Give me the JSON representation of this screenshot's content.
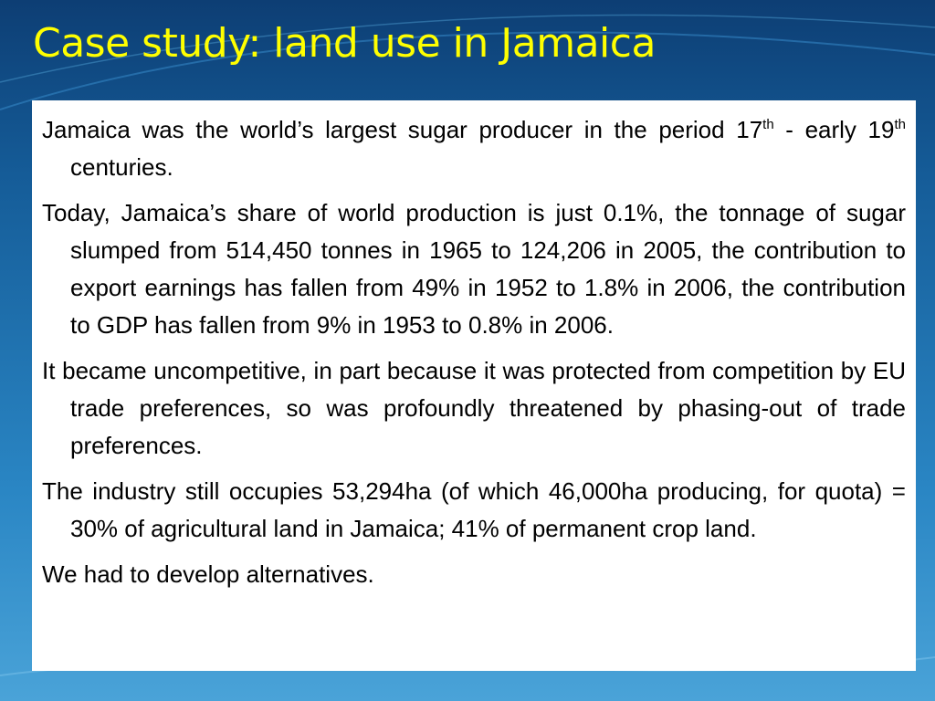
{
  "title": "Case study: land use in Jamaica",
  "paragraphs": [
    {
      "runs": [
        {
          "text": "Jamaica was the world’s largest sugar producer in the period 17"
        },
        {
          "sup": "th"
        },
        {
          "text": " - early 19"
        },
        {
          "sup": "th"
        },
        {
          "text": " centuries."
        }
      ]
    },
    {
      "runs": [
        {
          "text": "Today, Jamaica’s share of world production is just 0.1%, the tonnage of sugar slumped from 514,450 tonnes in 1965 to 124,206 in 2005, the contribution to export earnings has fallen from 49% in 1952 to 1.8% in 2006, the contribution to GDP has fallen from 9% in 1953 to 0.8% in 2006."
        }
      ]
    },
    {
      "runs": [
        {
          "text": "It became uncompetitive, in part because it was protected from competition by EU trade preferences, so was profoundly threatened by phasing-out of trade preferences."
        }
      ]
    },
    {
      "runs": [
        {
          "text": "The industry still occupies 53,294ha (of which 46,000ha producing, for quota) = 30% of agricultural land in Jamaica; 41% of permanent crop land."
        }
      ]
    },
    {
      "runs": [
        {
          "text": "We had to develop alternatives."
        }
      ]
    }
  ]
}
